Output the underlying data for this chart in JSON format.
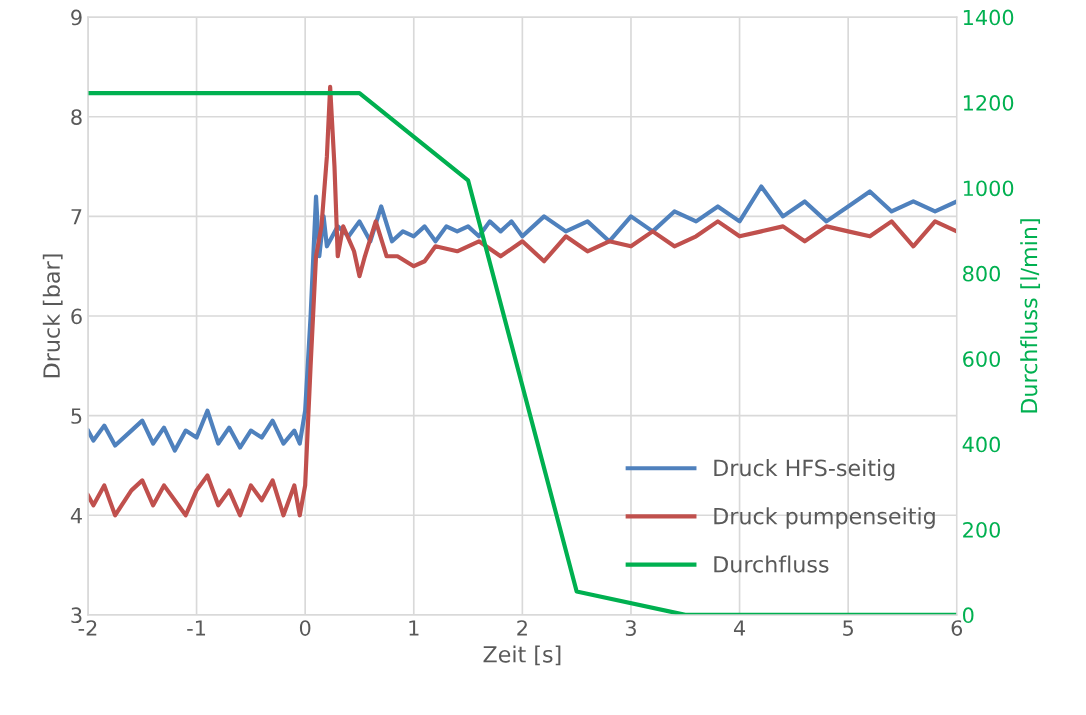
{
  "chart_data": {
    "type": "line",
    "xlabel": "Zeit [s]",
    "ylabel": "Druck [bar]",
    "y2label": "Durchfluss [l/min]",
    "xlim": [
      -2,
      6
    ],
    "xticks": [
      -2,
      -1,
      0,
      1,
      2,
      3,
      4,
      5,
      6
    ],
    "ylim": [
      3,
      9
    ],
    "yticks": [
      3,
      4,
      5,
      6,
      7,
      8,
      9
    ],
    "y2lim": [
      0,
      1400
    ],
    "y2ticks": [
      0,
      200,
      400,
      600,
      800,
      1000,
      1200,
      1400
    ],
    "grid": true,
    "legend": "bottom right",
    "series": [
      {
        "name": "Druck HFS-seitig",
        "color": "#4f81bd",
        "x": [
          -2,
          -1.95,
          -1.85,
          -1.75,
          -1.6,
          -1.5,
          -1.4,
          -1.3,
          -1.2,
          -1.1,
          -1.0,
          -0.9,
          -0.8,
          -0.7,
          -0.6,
          -0.5,
          -0.4,
          -0.3,
          -0.2,
          -0.1,
          -0.05,
          0,
          0.05,
          0.1,
          0.13,
          0.17,
          0.2,
          0.3,
          0.4,
          0.5,
          0.6,
          0.7,
          0.8,
          0.9,
          1.0,
          1.1,
          1.2,
          1.3,
          1.4,
          1.5,
          1.6,
          1.7,
          1.8,
          1.9,
          2.0,
          2.2,
          2.4,
          2.6,
          2.8,
          3.0,
          3.2,
          3.4,
          3.6,
          3.8,
          4.0,
          4.2,
          4.4,
          4.6,
          4.8,
          5.0,
          5.2,
          5.4,
          5.6,
          5.8,
          6.0
        ],
        "values": [
          4.85,
          4.75,
          4.9,
          4.7,
          4.85,
          4.95,
          4.72,
          4.88,
          4.65,
          4.85,
          4.78,
          5.05,
          4.72,
          4.88,
          4.68,
          4.85,
          4.78,
          4.95,
          4.72,
          4.85,
          4.72,
          5.05,
          6.0,
          7.2,
          6.6,
          7.0,
          6.7,
          6.9,
          6.8,
          6.95,
          6.75,
          7.1,
          6.75,
          6.85,
          6.8,
          6.9,
          6.75,
          6.9,
          6.85,
          6.9,
          6.8,
          6.95,
          6.85,
          6.95,
          6.8,
          7.0,
          6.85,
          6.95,
          6.75,
          7.0,
          6.85,
          7.05,
          6.95,
          7.1,
          6.95,
          7.3,
          7.0,
          7.15,
          6.95,
          7.1,
          7.25,
          7.05,
          7.15,
          7.05,
          7.15
        ]
      },
      {
        "name": "Druck pumpenseitig",
        "color": "#c0504d",
        "x": [
          -2,
          -1.95,
          -1.85,
          -1.75,
          -1.6,
          -1.5,
          -1.4,
          -1.3,
          -1.1,
          -1.0,
          -0.9,
          -0.8,
          -0.7,
          -0.6,
          -0.5,
          -0.4,
          -0.3,
          -0.2,
          -0.1,
          -0.05,
          0,
          0.05,
          0.1,
          0.15,
          0.2,
          0.23,
          0.27,
          0.3,
          0.35,
          0.45,
          0.5,
          0.55,
          0.65,
          0.75,
          0.85,
          1.0,
          1.1,
          1.2,
          1.4,
          1.6,
          1.8,
          2.0,
          2.2,
          2.4,
          2.6,
          2.8,
          3.0,
          3.2,
          3.4,
          3.6,
          3.8,
          4.0,
          4.2,
          4.4,
          4.6,
          4.8,
          5.0,
          5.2,
          5.4,
          5.6,
          5.8,
          6.0
        ],
        "values": [
          4.2,
          4.1,
          4.3,
          4.0,
          4.25,
          4.35,
          4.1,
          4.3,
          4.0,
          4.25,
          4.4,
          4.1,
          4.25,
          4.0,
          4.3,
          4.15,
          4.35,
          4.0,
          4.3,
          4.0,
          4.3,
          5.5,
          6.6,
          6.9,
          7.6,
          8.3,
          7.5,
          6.6,
          6.9,
          6.65,
          6.4,
          6.6,
          6.95,
          6.6,
          6.6,
          6.5,
          6.55,
          6.7,
          6.65,
          6.75,
          6.6,
          6.75,
          6.55,
          6.8,
          6.65,
          6.75,
          6.7,
          6.85,
          6.7,
          6.8,
          6.95,
          6.8,
          6.85,
          6.9,
          6.75,
          6.9,
          6.85,
          6.8,
          6.95,
          6.7,
          6.95,
          6.85
        ]
      },
      {
        "name": "Durchfluss",
        "color": "#00b050",
        "axis": "y2",
        "x": [
          -2,
          0.5,
          1.5,
          2.5,
          3.5,
          6
        ],
        "values": [
          1222,
          1222,
          1018,
          55,
          0,
          0
        ]
      }
    ]
  }
}
